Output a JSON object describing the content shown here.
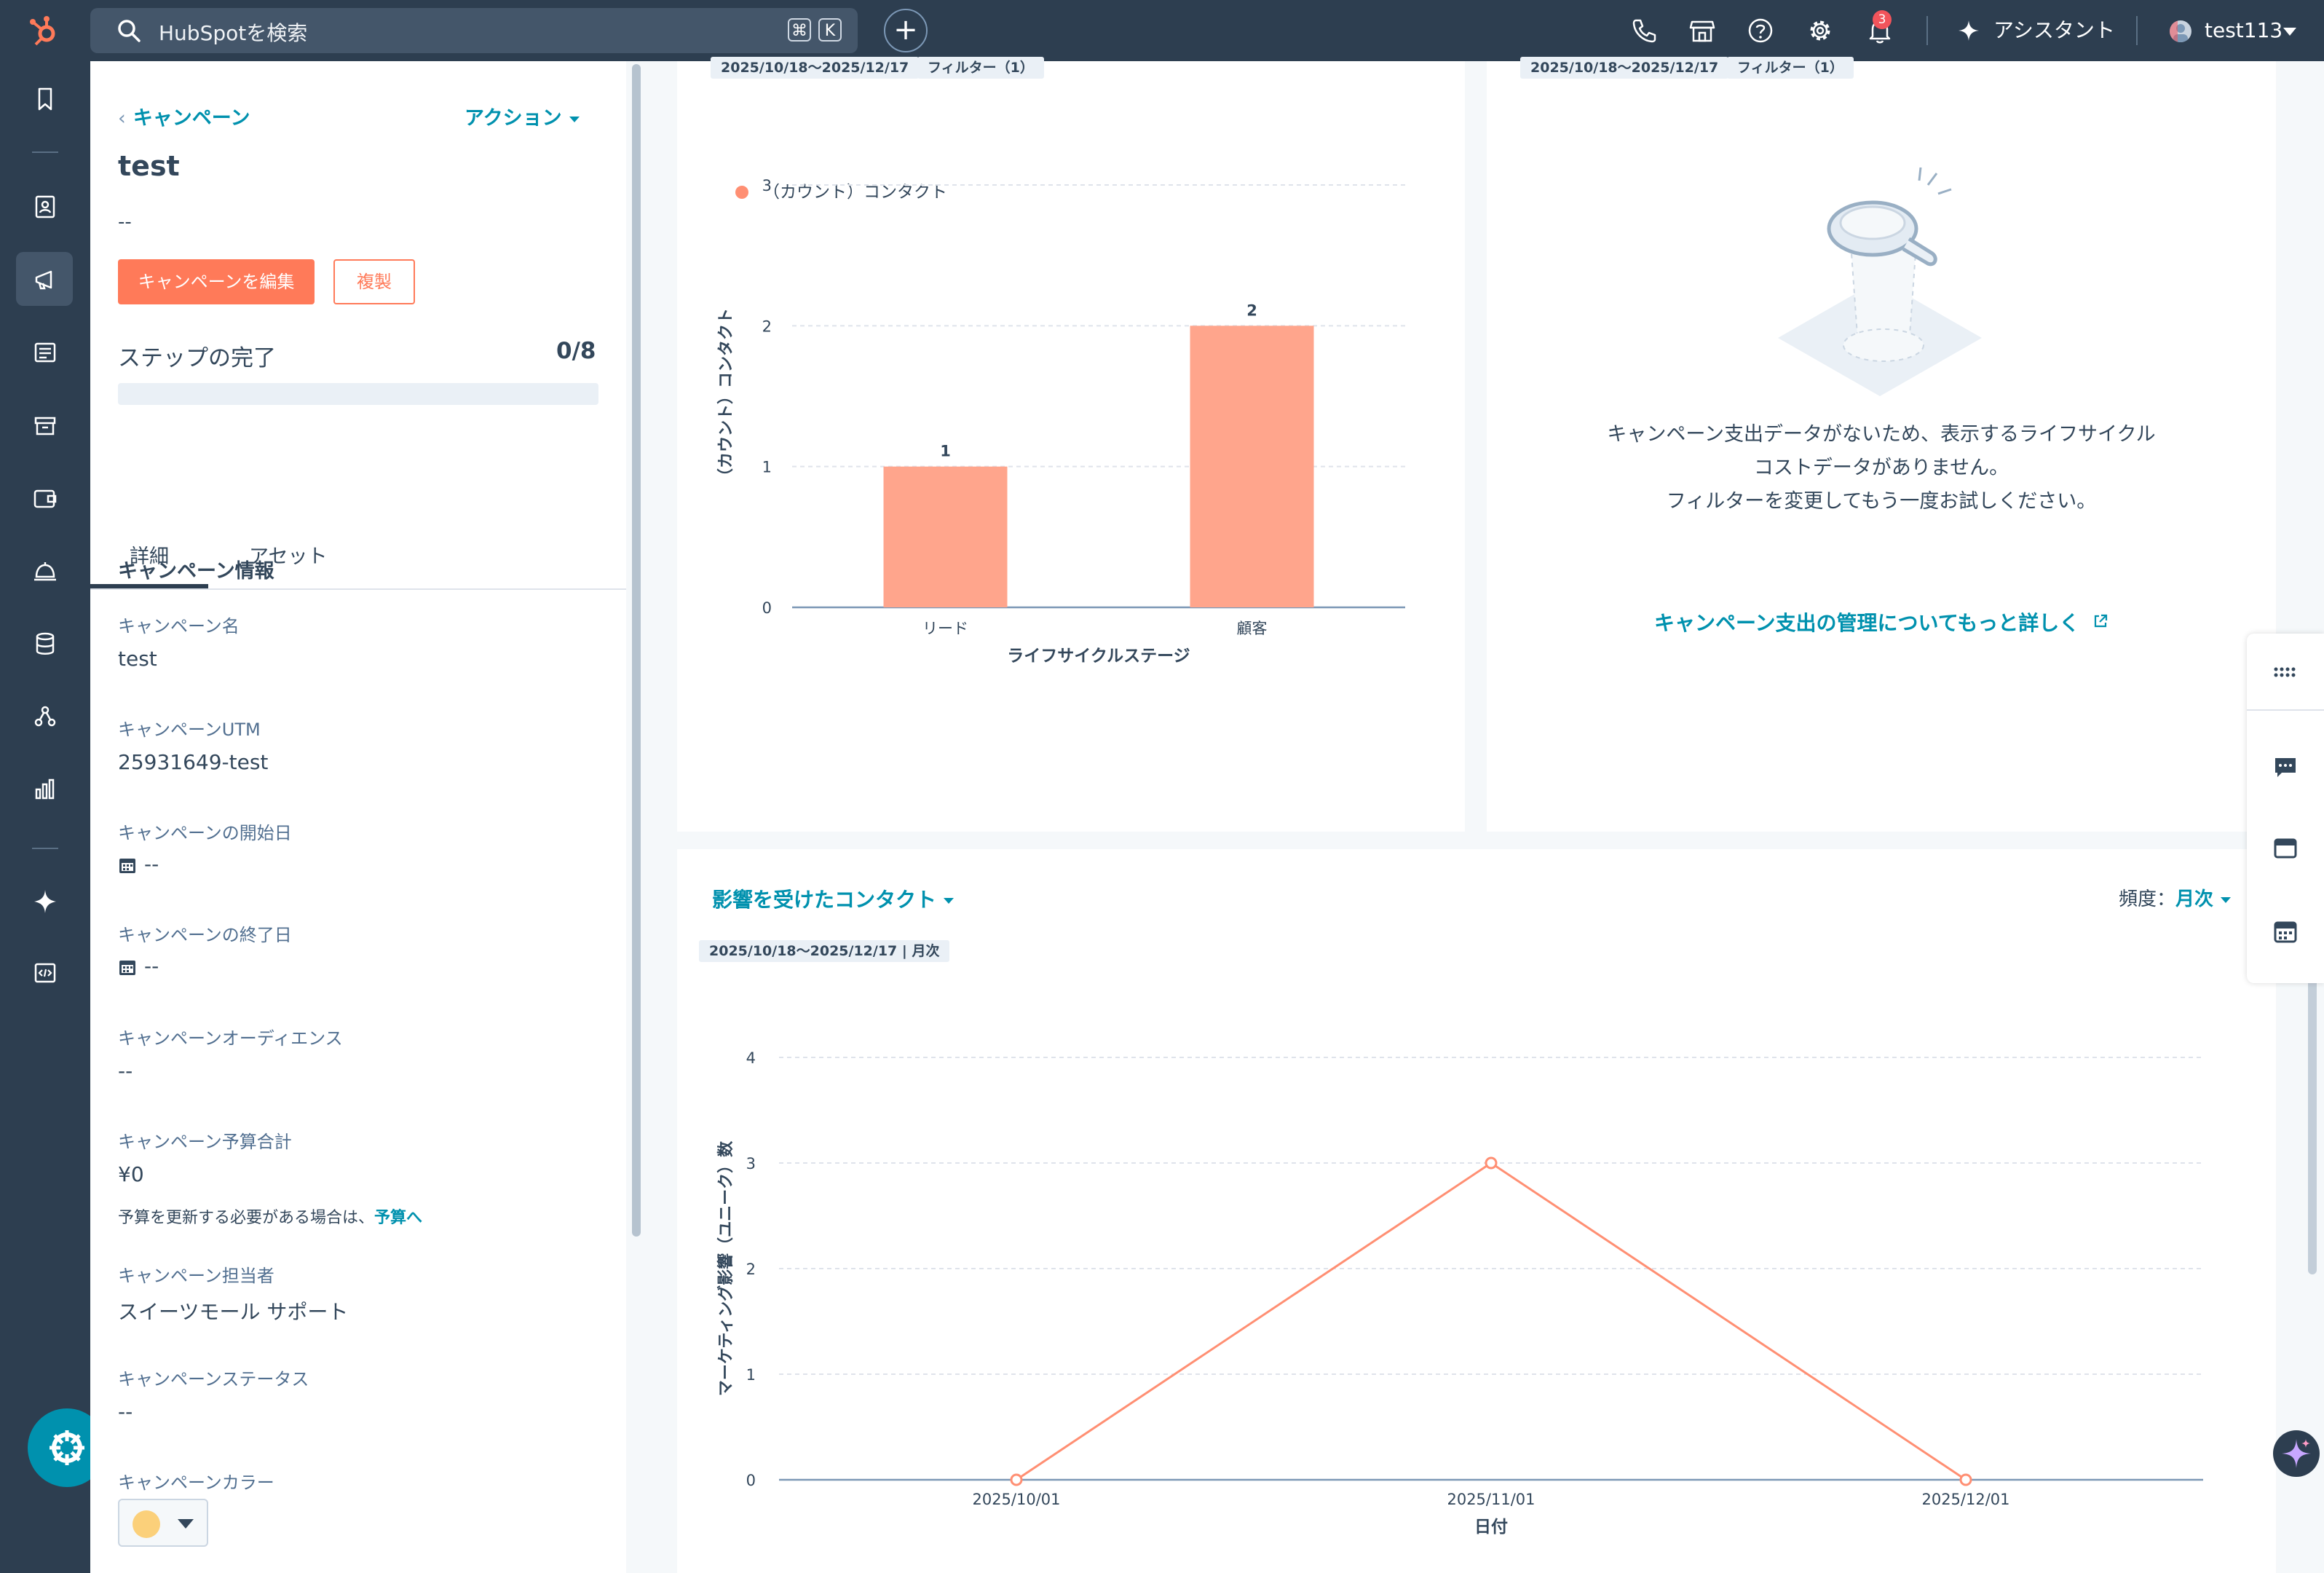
{
  "topbar": {
    "search_placeholder": "HubSpotを検索",
    "shortcut_cmd": "⌘",
    "shortcut_key": "K",
    "notification_count": "3",
    "assistant_label": "アシスタント",
    "user_name": "test113",
    "icons": [
      "phone-icon",
      "marketplace-icon",
      "help-icon",
      "settings-icon",
      "bell-icon"
    ]
  },
  "sidebar_icons": [
    "bookmark-icon",
    "contacts-icon",
    "marketing-icon",
    "content-icon",
    "commerce-icon",
    "sales-icon",
    "service-icon",
    "data-icon",
    "automation-icon",
    "reporting-icon",
    "breeze-icon",
    "developer-icon"
  ],
  "panel": {
    "back_label": "キャンペーン",
    "action_label": "アクション",
    "title": "test",
    "description": "--",
    "edit_button": "キャンペーンを編集",
    "clone_button": "複製",
    "steps_label": "ステップの完了",
    "steps_count": "0/8",
    "steps_progress": 0,
    "tabs": [
      "詳細",
      "アセット"
    ],
    "section_heading": "キャンペーン情報",
    "fields": {
      "name_label": "キャンペーン名",
      "name_value": "test",
      "utm_label": "キャンペーンUTM",
      "utm_value": "25931649-test",
      "start_label": "キャンペーンの開始日",
      "start_value": "--",
      "end_label": "キャンペーンの終了日",
      "end_value": "--",
      "audience_label": "キャンペーンオーディエンス",
      "audience_value": "--",
      "budget_label": "キャンペーン予算合計",
      "budget_value": "¥0",
      "budget_note": "予算を更新する必要がある場合は、",
      "budget_link": "予算へ",
      "owner_label": "キャンペーン担当者",
      "owner_value": "スイーツモール サポート",
      "status_label": "キャンペーンステータス",
      "status_value": "--",
      "color_label": "キャンペーンカラー",
      "color_value": "#fbd07a"
    }
  },
  "cards": {
    "bar_card": {
      "date_chip": "2025/10/18〜2025/12/17",
      "filter_chip": "フィルター（1）",
      "legend": "（カウント）コンタクト"
    },
    "cost_card": {
      "date_chip": "2025/10/18〜2025/12/17",
      "filter_chip": "フィルター（1）",
      "empty_line1": "キャンペーン支出データがないため、表示するライフサイクル",
      "empty_line2": "コストデータがありません。",
      "empty_line3": "フィルターを変更してもう一度お試しください。",
      "link": "キャンペーン支出の管理についてもっと詳しく"
    },
    "line_card": {
      "title": "影響を受けたコンタクト",
      "freq_label": "頻度：",
      "freq_value": "月次",
      "date_chip": "2025/10/18〜2025/12/17 | 月次"
    }
  },
  "chart_data": [
    {
      "type": "bar",
      "categories": [
        "リード",
        "顧客"
      ],
      "series": [
        {
          "name": "（カウント）コンタクト",
          "values": [
            1,
            2
          ]
        }
      ],
      "xlabel": "ライフサイクルステージ",
      "ylabel": "（カウント）コンタクト",
      "ylim": [
        0,
        3
      ],
      "yticks": [
        0,
        1,
        2,
        3
      ],
      "grid": true,
      "color": "#ffa58c"
    },
    {
      "type": "line",
      "x": [
        "2025/10/01",
        "2025/11/01",
        "2025/12/01"
      ],
      "series": [
        {
          "values": [
            0,
            3,
            0
          ]
        }
      ],
      "xlabel": "日付",
      "ylabel": "マーケティング影響（ユニーク）数",
      "ylim": [
        0,
        4
      ],
      "yticks": [
        0,
        1,
        2,
        3,
        4
      ],
      "grid": true,
      "color": "#ff8f73"
    }
  ],
  "colors": {
    "nav": "#2d3e50",
    "primary": "#ff7a59",
    "link": "#0091ae",
    "bar": "#ffa58c"
  }
}
